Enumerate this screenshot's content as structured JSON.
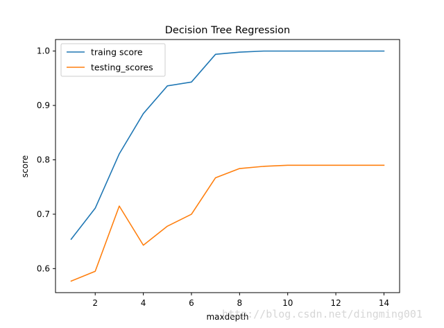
{
  "chart_data": {
    "type": "line",
    "title": "Decision Tree Regression",
    "xlabel": "maxdepth",
    "ylabel": "score",
    "x": [
      1,
      2,
      3,
      4,
      5,
      6,
      7,
      8,
      9,
      10,
      11,
      12,
      13,
      14
    ],
    "series": [
      {
        "name": "traing score",
        "color": "#1f77b4",
        "values": [
          0.654,
          0.711,
          0.811,
          0.885,
          0.936,
          0.943,
          0.994,
          0.998,
          1.0,
          1.0,
          1.0,
          1.0,
          1.0,
          1.0
        ]
      },
      {
        "name": "testing_scores",
        "color": "#ff7f0e",
        "values": [
          0.577,
          0.595,
          0.715,
          0.643,
          0.678,
          0.7,
          0.767,
          0.784,
          0.788,
          0.79,
          0.79,
          0.79,
          0.79,
          0.79
        ]
      }
    ],
    "xlim": [
      0.35,
      14.65
    ],
    "ylim": [
      0.5558,
      1.0212
    ],
    "xticks": [
      "2",
      "4",
      "6",
      "8",
      "10",
      "12",
      "14"
    ],
    "yticks": [
      "0.6",
      "0.7",
      "0.8",
      "0.9",
      "1.0"
    ],
    "legend": "upper-left",
    "grid": false
  },
  "watermark": "http://blog.csdn.net/dingming001"
}
